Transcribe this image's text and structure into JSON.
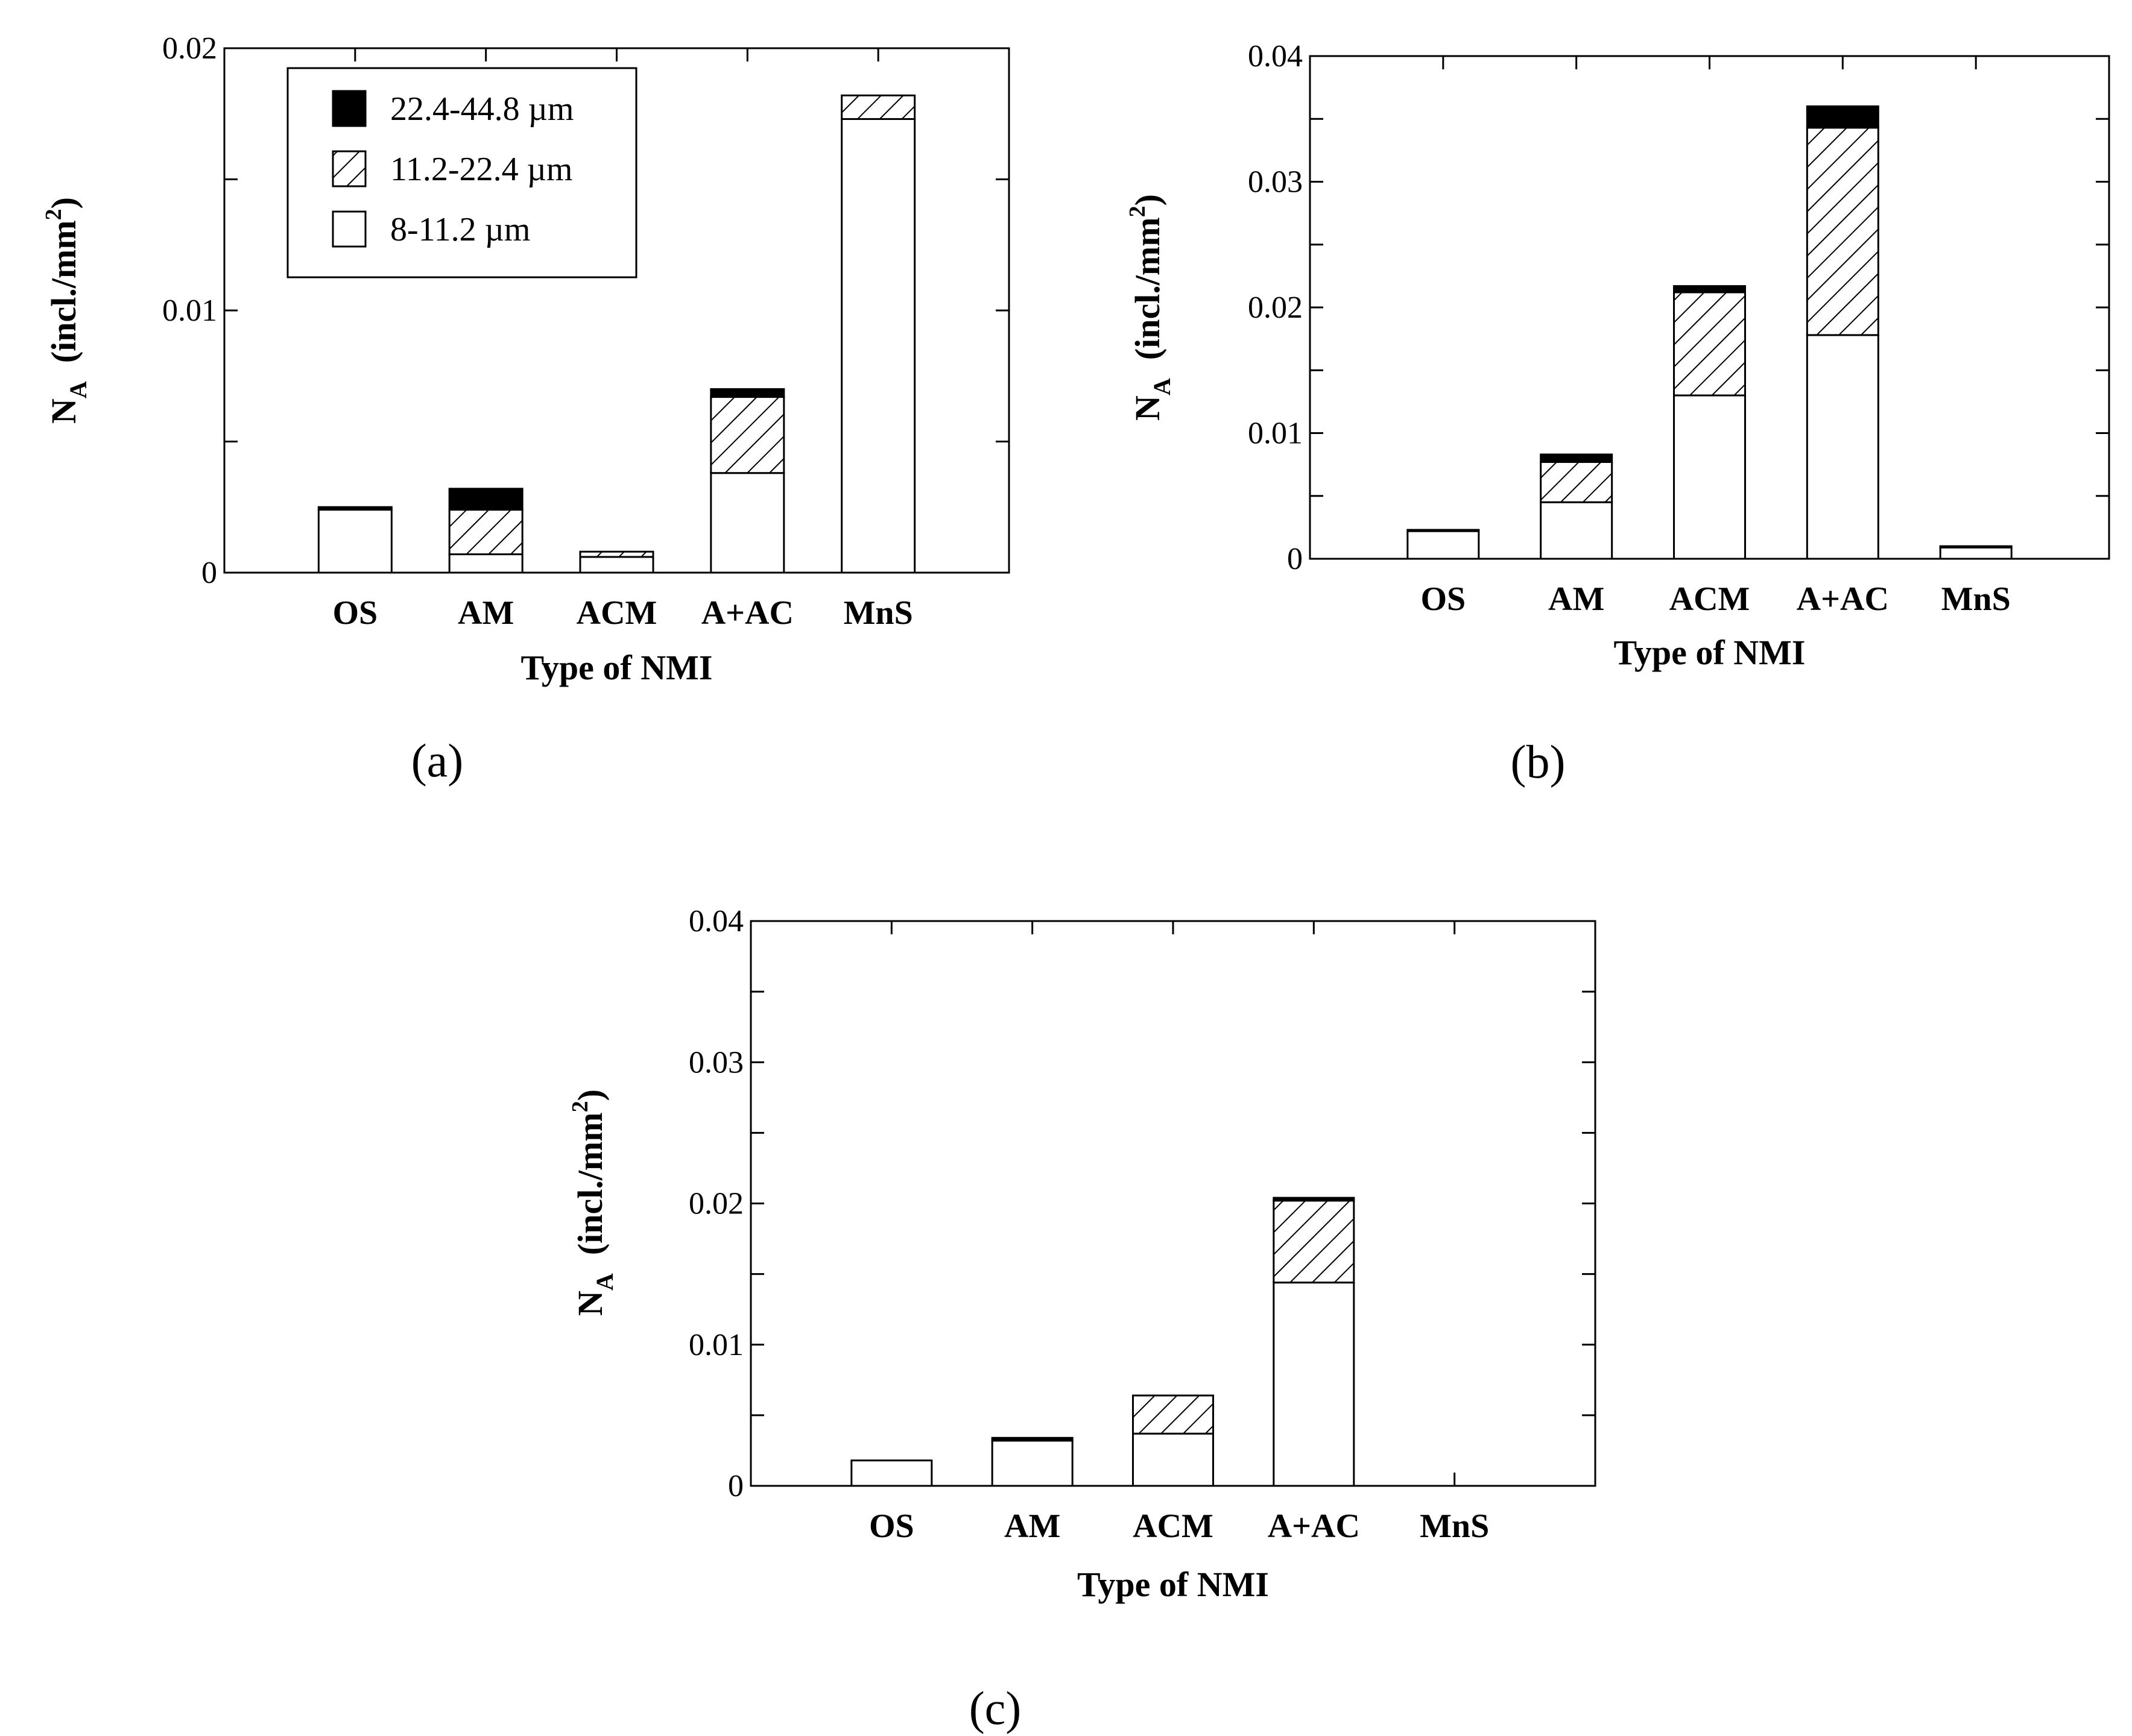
{
  "legend": [
    {
      "key": "coarse",
      "label": "22.4-44.8 µm",
      "fill": "solid"
    },
    {
      "key": "medium",
      "label": "11.2-22.4 µm",
      "fill": "hatch"
    },
    {
      "key": "fine",
      "label": "8-11.2 µm",
      "fill": "empty"
    }
  ],
  "colors": {
    "stroke": "#000000",
    "solid": "#000000",
    "background": "#ffffff"
  },
  "chart_data": [
    {
      "panel": "(a)",
      "type": "bar",
      "stacked": true,
      "title": "",
      "xlabel": "Type of NMI",
      "ylabel_main": "N",
      "ylabel_sub": "A",
      "ylabel_unit": "(incl./mm",
      "ylabel_sup": "2",
      "ylabel_close": ")",
      "ylim": [
        0,
        0.02
      ],
      "yticks": [
        0,
        0.01,
        0.02
      ],
      "ytick_labels": [
        "0",
        "0.01",
        "0.02"
      ],
      "minor_step": 0.005,
      "categories": [
        "OS",
        "AM",
        "ACM",
        "A+AC",
        "MnS"
      ],
      "series": [
        {
          "name": "8-11.2 µm",
          "key": "fine",
          "values": [
            0.0024,
            0.0007,
            0.0006,
            0.0038,
            0.0173
          ]
        },
        {
          "name": "11.2-22.4 µm",
          "key": "medium",
          "values": [
            0,
            0.0017,
            0.0002,
            0.0029,
            0.0009
          ]
        },
        {
          "name": "22.4-44.8 µm",
          "key": "coarse",
          "values": [
            0.0001,
            0.0008,
            0,
            0.0003,
            0
          ]
        }
      ]
    },
    {
      "panel": "(b)",
      "type": "bar",
      "stacked": true,
      "title": "",
      "xlabel": "Type of NMI",
      "ylabel_main": "N",
      "ylabel_sub": "A",
      "ylabel_unit": "(incl./mm",
      "ylabel_sup": "2",
      "ylabel_close": ")",
      "ylim": [
        0,
        0.04
      ],
      "yticks": [
        0,
        0.01,
        0.02,
        0.03,
        0.04
      ],
      "ytick_labels": [
        "0",
        "0.01",
        "0.02",
        "0.03",
        "0.04"
      ],
      "minor_step": 0.005,
      "categories": [
        "OS",
        "AM",
        "ACM",
        "A+AC",
        "MnS"
      ],
      "series": [
        {
          "name": "8-11.2 µm",
          "key": "fine",
          "values": [
            0.0022,
            0.0045,
            0.013,
            0.0178,
            0.0009
          ]
        },
        {
          "name": "11.2-22.4 µm",
          "key": "medium",
          "values": [
            0,
            0.0032,
            0.0082,
            0.0165,
            0
          ]
        },
        {
          "name": "22.4-44.8 µm",
          "key": "coarse",
          "values": [
            0.0001,
            0.0006,
            0.0005,
            0.0017,
            0.0001
          ]
        }
      ]
    },
    {
      "panel": "(c)",
      "type": "bar",
      "stacked": true,
      "title": "",
      "xlabel": "Type of NMI",
      "ylabel_main": "N",
      "ylabel_sub": "A",
      "ylabel_unit": "(incl./mm",
      "ylabel_sup": "2",
      "ylabel_close": ")",
      "ylim": [
        0,
        0.04
      ],
      "yticks": [
        0,
        0.01,
        0.02,
        0.03,
        0.04
      ],
      "ytick_labels": [
        "0",
        "0.01",
        "0.02",
        "0.03",
        "0.04"
      ],
      "minor_step": 0.005,
      "categories": [
        "OS",
        "AM",
        "ACM",
        "A+AC",
        "MnS"
      ],
      "series": [
        {
          "name": "8-11.2 µm",
          "key": "fine",
          "values": [
            0.0018,
            0.0032,
            0.0037,
            0.0144,
            0
          ]
        },
        {
          "name": "11.2-22.4 µm",
          "key": "medium",
          "values": [
            0,
            0,
            0.0027,
            0.0058,
            0
          ]
        },
        {
          "name": "22.4-44.8 µm",
          "key": "coarse",
          "values": [
            0,
            0.0002,
            0,
            0.0002,
            0
          ]
        }
      ]
    }
  ]
}
